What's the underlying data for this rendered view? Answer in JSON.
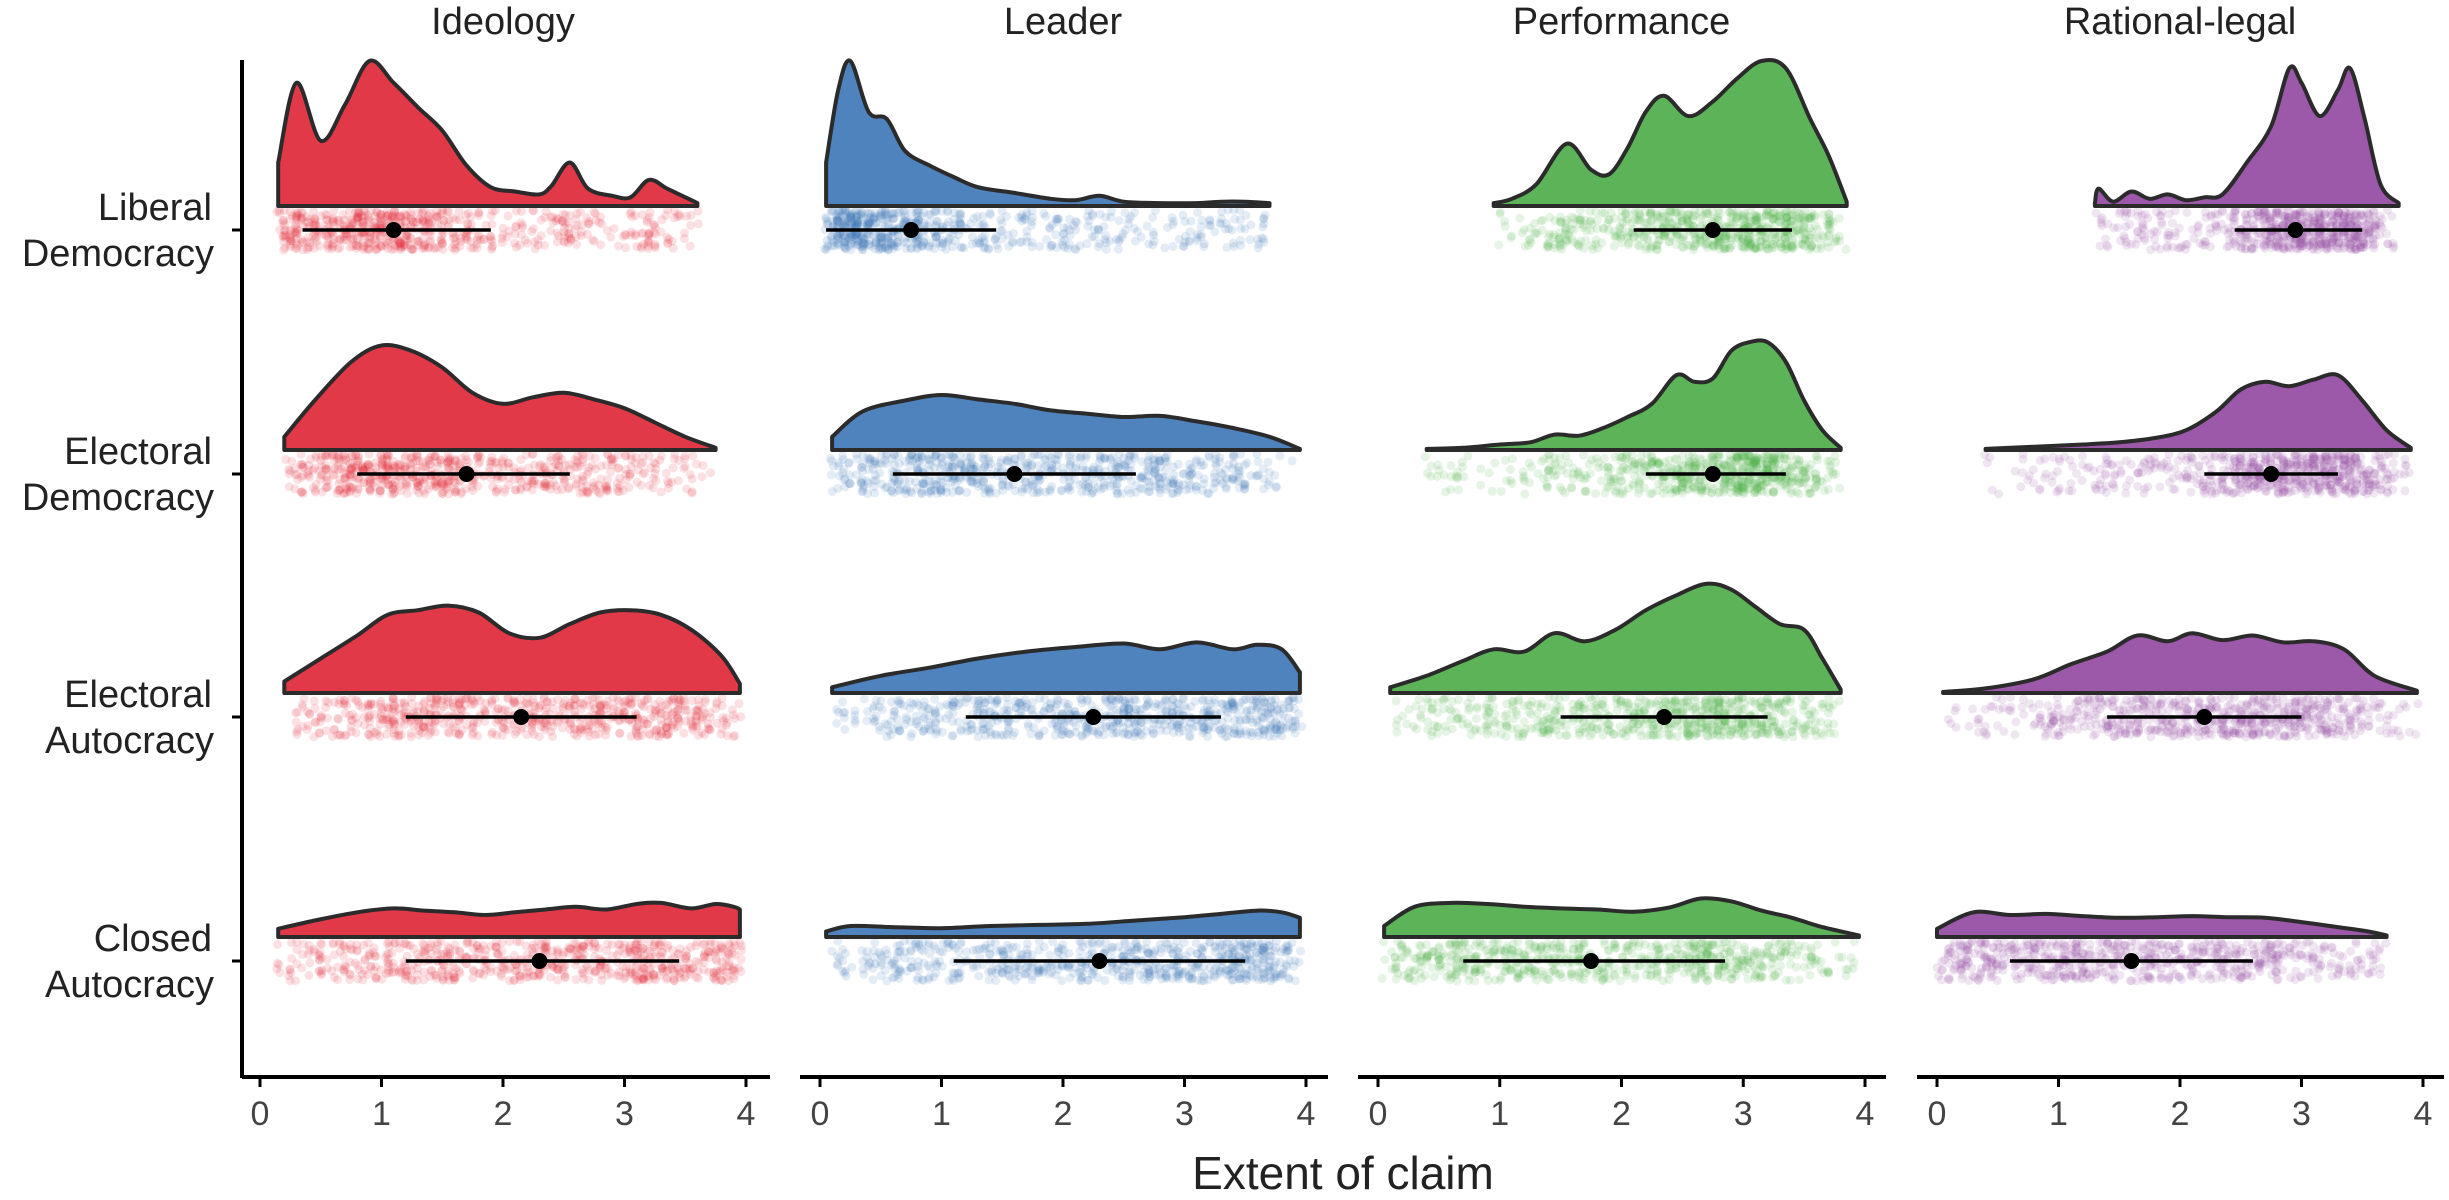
{
  "chart_data": {
    "type": "raincloud",
    "xlabel": "Extent of claim",
    "xlim": [
      0,
      4
    ],
    "x_ticks": [
      "0",
      "1",
      "2",
      "3",
      "4"
    ],
    "facets": [
      "Ideology",
      "Leader",
      "Performance",
      "Rational-legal"
    ],
    "rows": [
      {
        "line1": "Liberal",
        "line2": "Democracy"
      },
      {
        "line1": "Electoral",
        "line2": "Democracy"
      },
      {
        "line1": "Electoral",
        "line2": "Autocracy"
      },
      {
        "line1": "Closed",
        "line2": "Autocracy"
      }
    ],
    "colors": {
      "Ideology": "#e0283a",
      "Leader": "#3f78b8",
      "Performance": "#4fae4a",
      "Rational-legal": "#944ba3"
    },
    "panels": [
      {
        "facet": "Ideology",
        "row": 0,
        "range": [
          0.15,
          3.6
        ],
        "mean": 1.1,
        "ci": [
          0.35,
          1.9
        ],
        "density": [
          [
            0.15,
            0.3
          ],
          [
            0.3,
            0.85
          ],
          [
            0.5,
            0.45
          ],
          [
            0.7,
            0.7
          ],
          [
            0.9,
            1.0
          ],
          [
            1.1,
            0.85
          ],
          [
            1.3,
            0.68
          ],
          [
            1.5,
            0.52
          ],
          [
            1.7,
            0.28
          ],
          [
            1.9,
            0.13
          ],
          [
            2.1,
            0.1
          ],
          [
            2.3,
            0.08
          ],
          [
            2.4,
            0.14
          ],
          [
            2.55,
            0.3
          ],
          [
            2.7,
            0.12
          ],
          [
            2.9,
            0.07
          ],
          [
            3.05,
            0.06
          ],
          [
            3.2,
            0.18
          ],
          [
            3.35,
            0.12
          ],
          [
            3.5,
            0.06
          ],
          [
            3.6,
            0.02
          ]
        ]
      },
      {
        "facet": "Leader",
        "row": 0,
        "range": [
          0.05,
          3.7
        ],
        "mean": 0.75,
        "ci": [
          0.05,
          1.45
        ],
        "density": [
          [
            0.05,
            0.3
          ],
          [
            0.15,
            0.8
          ],
          [
            0.25,
            1.0
          ],
          [
            0.4,
            0.65
          ],
          [
            0.55,
            0.6
          ],
          [
            0.7,
            0.38
          ],
          [
            0.9,
            0.28
          ],
          [
            1.1,
            0.2
          ],
          [
            1.3,
            0.13
          ],
          [
            1.6,
            0.09
          ],
          [
            1.9,
            0.05
          ],
          [
            2.1,
            0.04
          ],
          [
            2.3,
            0.07
          ],
          [
            2.5,
            0.03
          ],
          [
            2.8,
            0.02
          ],
          [
            3.1,
            0.02
          ],
          [
            3.3,
            0.03
          ],
          [
            3.5,
            0.03
          ],
          [
            3.7,
            0.02
          ]
        ]
      },
      {
        "facet": "Performance",
        "row": 0,
        "range": [
          0.95,
          3.85
        ],
        "mean": 2.75,
        "ci": [
          2.1,
          3.4
        ],
        "density": [
          [
            0.95,
            0.02
          ],
          [
            1.1,
            0.05
          ],
          [
            1.3,
            0.15
          ],
          [
            1.55,
            0.43
          ],
          [
            1.75,
            0.25
          ],
          [
            1.9,
            0.22
          ],
          [
            2.05,
            0.4
          ],
          [
            2.2,
            0.65
          ],
          [
            2.35,
            0.76
          ],
          [
            2.55,
            0.62
          ],
          [
            2.75,
            0.72
          ],
          [
            2.95,
            0.88
          ],
          [
            3.15,
            1.0
          ],
          [
            3.35,
            0.95
          ],
          [
            3.55,
            0.6
          ],
          [
            3.7,
            0.35
          ],
          [
            3.85,
            0.03
          ]
        ]
      },
      {
        "facet": "Rational-legal",
        "row": 0,
        "range": [
          1.3,
          3.8
        ],
        "mean": 2.95,
        "ci": [
          2.45,
          3.5
        ],
        "density": [
          [
            1.3,
            0.02
          ],
          [
            1.33,
            0.12
          ],
          [
            1.45,
            0.03
          ],
          [
            1.6,
            0.1
          ],
          [
            1.75,
            0.05
          ],
          [
            1.9,
            0.08
          ],
          [
            2.05,
            0.04
          ],
          [
            2.2,
            0.06
          ],
          [
            2.35,
            0.08
          ],
          [
            2.55,
            0.3
          ],
          [
            2.75,
            0.55
          ],
          [
            2.9,
            0.95
          ],
          [
            3.0,
            0.85
          ],
          [
            3.15,
            0.62
          ],
          [
            3.3,
            0.8
          ],
          [
            3.4,
            0.95
          ],
          [
            3.52,
            0.6
          ],
          [
            3.65,
            0.15
          ],
          [
            3.8,
            0.02
          ]
        ]
      },
      {
        "facet": "Ideology",
        "row": 1,
        "range": [
          0.2,
          3.75
        ],
        "mean": 1.7,
        "ci": [
          0.8,
          2.55
        ],
        "density": [
          [
            0.2,
            0.12
          ],
          [
            0.45,
            0.45
          ],
          [
            0.75,
            0.8
          ],
          [
            1.0,
            0.95
          ],
          [
            1.25,
            0.9
          ],
          [
            1.5,
            0.75
          ],
          [
            1.75,
            0.52
          ],
          [
            2.0,
            0.42
          ],
          [
            2.25,
            0.48
          ],
          [
            2.5,
            0.52
          ],
          [
            2.75,
            0.46
          ],
          [
            3.0,
            0.38
          ],
          [
            3.25,
            0.25
          ],
          [
            3.5,
            0.12
          ],
          [
            3.75,
            0.02
          ]
        ]
      },
      {
        "facet": "Leader",
        "row": 1,
        "range": [
          0.1,
          3.95
        ],
        "mean": 1.6,
        "ci": [
          0.6,
          2.6
        ],
        "density": [
          [
            0.1,
            0.12
          ],
          [
            0.35,
            0.35
          ],
          [
            0.7,
            0.45
          ],
          [
            1.0,
            0.5
          ],
          [
            1.3,
            0.46
          ],
          [
            1.6,
            0.42
          ],
          [
            1.9,
            0.36
          ],
          [
            2.2,
            0.33
          ],
          [
            2.5,
            0.3
          ],
          [
            2.8,
            0.31
          ],
          [
            3.1,
            0.26
          ],
          [
            3.4,
            0.2
          ],
          [
            3.7,
            0.12
          ],
          [
            3.95,
            0.01
          ]
        ]
      },
      {
        "facet": "Performance",
        "row": 1,
        "range": [
          0.4,
          3.8
        ],
        "mean": 2.75,
        "ci": [
          2.2,
          3.35
        ],
        "density": [
          [
            0.4,
            0.01
          ],
          [
            0.7,
            0.02
          ],
          [
            1.0,
            0.05
          ],
          [
            1.25,
            0.07
          ],
          [
            1.45,
            0.14
          ],
          [
            1.65,
            0.13
          ],
          [
            1.85,
            0.2
          ],
          [
            2.05,
            0.3
          ],
          [
            2.25,
            0.42
          ],
          [
            2.45,
            0.68
          ],
          [
            2.6,
            0.62
          ],
          [
            2.75,
            0.65
          ],
          [
            2.9,
            0.9
          ],
          [
            3.05,
            0.98
          ],
          [
            3.2,
            0.98
          ],
          [
            3.35,
            0.8
          ],
          [
            3.5,
            0.45
          ],
          [
            3.65,
            0.18
          ],
          [
            3.8,
            0.02
          ]
        ]
      },
      {
        "facet": "Rational-legal",
        "row": 1,
        "range": [
          0.4,
          3.9
        ],
        "mean": 2.75,
        "ci": [
          2.2,
          3.3
        ],
        "density": [
          [
            0.4,
            0.01
          ],
          [
            0.8,
            0.03
          ],
          [
            1.2,
            0.05
          ],
          [
            1.5,
            0.07
          ],
          [
            1.8,
            0.11
          ],
          [
            2.05,
            0.18
          ],
          [
            2.3,
            0.35
          ],
          [
            2.5,
            0.55
          ],
          [
            2.7,
            0.62
          ],
          [
            2.9,
            0.58
          ],
          [
            3.1,
            0.64
          ],
          [
            3.3,
            0.68
          ],
          [
            3.5,
            0.45
          ],
          [
            3.7,
            0.18
          ],
          [
            3.9,
            0.02
          ]
        ]
      },
      {
        "facet": "Ideology",
        "row": 2,
        "range": [
          0.2,
          3.95
        ],
        "mean": 2.15,
        "ci": [
          1.2,
          3.1
        ],
        "density": [
          [
            0.2,
            0.1
          ],
          [
            0.5,
            0.3
          ],
          [
            0.8,
            0.5
          ],
          [
            1.05,
            0.68
          ],
          [
            1.3,
            0.72
          ],
          [
            1.55,
            0.76
          ],
          [
            1.8,
            0.7
          ],
          [
            2.05,
            0.52
          ],
          [
            2.3,
            0.48
          ],
          [
            2.55,
            0.6
          ],
          [
            2.8,
            0.7
          ],
          [
            3.05,
            0.72
          ],
          [
            3.3,
            0.68
          ],
          [
            3.55,
            0.55
          ],
          [
            3.8,
            0.32
          ],
          [
            3.95,
            0.08
          ]
        ]
      },
      {
        "facet": "Leader",
        "row": 2,
        "range": [
          0.1,
          3.95
        ],
        "mean": 2.25,
        "ci": [
          1.2,
          3.3
        ],
        "density": [
          [
            0.1,
            0.05
          ],
          [
            0.5,
            0.15
          ],
          [
            0.9,
            0.22
          ],
          [
            1.3,
            0.3
          ],
          [
            1.7,
            0.36
          ],
          [
            2.1,
            0.4
          ],
          [
            2.5,
            0.43
          ],
          [
            2.8,
            0.38
          ],
          [
            3.1,
            0.44
          ],
          [
            3.4,
            0.38
          ],
          [
            3.6,
            0.42
          ],
          [
            3.8,
            0.38
          ],
          [
            3.95,
            0.18
          ]
        ]
      },
      {
        "facet": "Performance",
        "row": 2,
        "range": [
          0.1,
          3.8
        ],
        "mean": 2.35,
        "ci": [
          1.5,
          3.2
        ],
        "density": [
          [
            0.1,
            0.05
          ],
          [
            0.4,
            0.15
          ],
          [
            0.7,
            0.28
          ],
          [
            0.95,
            0.38
          ],
          [
            1.2,
            0.36
          ],
          [
            1.45,
            0.52
          ],
          [
            1.7,
            0.45
          ],
          [
            1.95,
            0.55
          ],
          [
            2.2,
            0.72
          ],
          [
            2.45,
            0.85
          ],
          [
            2.7,
            0.95
          ],
          [
            2.9,
            0.9
          ],
          [
            3.1,
            0.75
          ],
          [
            3.3,
            0.6
          ],
          [
            3.5,
            0.55
          ],
          [
            3.65,
            0.3
          ],
          [
            3.8,
            0.03
          ]
        ]
      },
      {
        "facet": "Rational-legal",
        "row": 2,
        "range": [
          0.05,
          3.95
        ],
        "mean": 2.2,
        "ci": [
          1.4,
          3.0
        ],
        "density": [
          [
            0.05,
            0.01
          ],
          [
            0.4,
            0.04
          ],
          [
            0.8,
            0.12
          ],
          [
            1.1,
            0.25
          ],
          [
            1.4,
            0.36
          ],
          [
            1.65,
            0.5
          ],
          [
            1.9,
            0.45
          ],
          [
            2.1,
            0.52
          ],
          [
            2.35,
            0.46
          ],
          [
            2.6,
            0.5
          ],
          [
            2.85,
            0.44
          ],
          [
            3.1,
            0.45
          ],
          [
            3.35,
            0.38
          ],
          [
            3.6,
            0.15
          ],
          [
            3.95,
            0.02
          ]
        ]
      },
      {
        "facet": "Ideology",
        "row": 3,
        "range": [
          0.15,
          3.95
        ],
        "mean": 2.3,
        "ci": [
          1.2,
          3.45
        ],
        "density": [
          [
            0.15,
            0.15
          ],
          [
            0.45,
            0.3
          ],
          [
            0.8,
            0.45
          ],
          [
            1.1,
            0.52
          ],
          [
            1.35,
            0.48
          ],
          [
            1.6,
            0.45
          ],
          [
            1.85,
            0.4
          ],
          [
            2.1,
            0.45
          ],
          [
            2.35,
            0.5
          ],
          [
            2.6,
            0.55
          ],
          [
            2.85,
            0.5
          ],
          [
            3.1,
            0.6
          ],
          [
            3.3,
            0.62
          ],
          [
            3.55,
            0.52
          ],
          [
            3.75,
            0.6
          ],
          [
            3.9,
            0.55
          ],
          [
            3.95,
            0.5
          ]
        ]
      },
      {
        "facet": "Leader",
        "row": 3,
        "range": [
          0.05,
          3.95
        ],
        "mean": 2.3,
        "ci": [
          1.1,
          3.5
        ],
        "density": [
          [
            0.05,
            0.1
          ],
          [
            0.25,
            0.2
          ],
          [
            0.6,
            0.18
          ],
          [
            1.0,
            0.16
          ],
          [
            1.4,
            0.2
          ],
          [
            1.8,
            0.22
          ],
          [
            2.2,
            0.24
          ],
          [
            2.6,
            0.3
          ],
          [
            3.0,
            0.36
          ],
          [
            3.3,
            0.42
          ],
          [
            3.6,
            0.48
          ],
          [
            3.8,
            0.45
          ],
          [
            3.95,
            0.35
          ]
        ]
      },
      {
        "facet": "Performance",
        "row": 3,
        "range": [
          0.05,
          3.95
        ],
        "mean": 1.75,
        "ci": [
          0.7,
          2.85
        ],
        "density": [
          [
            0.05,
            0.2
          ],
          [
            0.3,
            0.55
          ],
          [
            0.6,
            0.62
          ],
          [
            0.9,
            0.6
          ],
          [
            1.2,
            0.55
          ],
          [
            1.5,
            0.52
          ],
          [
            1.8,
            0.5
          ],
          [
            2.1,
            0.46
          ],
          [
            2.4,
            0.54
          ],
          [
            2.65,
            0.7
          ],
          [
            2.9,
            0.65
          ],
          [
            3.15,
            0.48
          ],
          [
            3.4,
            0.35
          ],
          [
            3.65,
            0.18
          ],
          [
            3.95,
            0.03
          ]
        ]
      },
      {
        "facet": "Rational-legal",
        "row": 3,
        "range": [
          0.0,
          3.7
        ],
        "mean": 1.6,
        "ci": [
          0.6,
          2.6
        ],
        "density": [
          [
            0.0,
            0.15
          ],
          [
            0.3,
            0.45
          ],
          [
            0.6,
            0.4
          ],
          [
            0.9,
            0.42
          ],
          [
            1.2,
            0.38
          ],
          [
            1.5,
            0.35
          ],
          [
            1.8,
            0.36
          ],
          [
            2.1,
            0.38
          ],
          [
            2.4,
            0.36
          ],
          [
            2.7,
            0.35
          ],
          [
            3.0,
            0.27
          ],
          [
            3.3,
            0.18
          ],
          [
            3.55,
            0.1
          ],
          [
            3.7,
            0.03
          ]
        ]
      }
    ]
  }
}
